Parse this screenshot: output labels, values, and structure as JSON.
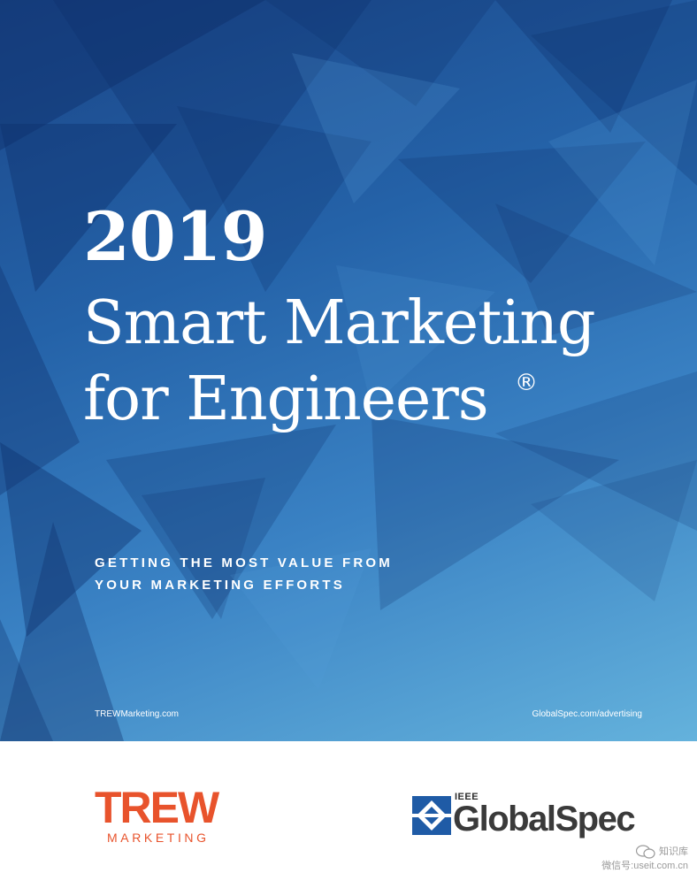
{
  "cover": {
    "year": "2019",
    "title_line1": "Smart Marketing",
    "title_line2": "for Engineers",
    "registered_mark": "®",
    "subtitle_line1": "GETTING THE MOST VALUE FROM",
    "subtitle_line2": "YOUR MARKETING EFFORTS",
    "url_left": "TREWMarketing.com",
    "url_right": "GlobalSpec.com/advertising"
  },
  "logos": {
    "trew_word": "TREW",
    "trew_sub": "MARKETING",
    "globalspec_ieee": "IEEE",
    "globalspec_name": "GlobalSpec"
  },
  "watermark": {
    "line1": "知识库",
    "line2": "微信号:useit.com.cn"
  },
  "colors": {
    "trew_orange": "#e8532c",
    "globalspec_blue": "#1f5ba6",
    "cover_blue_dark": "#1b4688",
    "cover_blue_light": "#64b2dc"
  }
}
